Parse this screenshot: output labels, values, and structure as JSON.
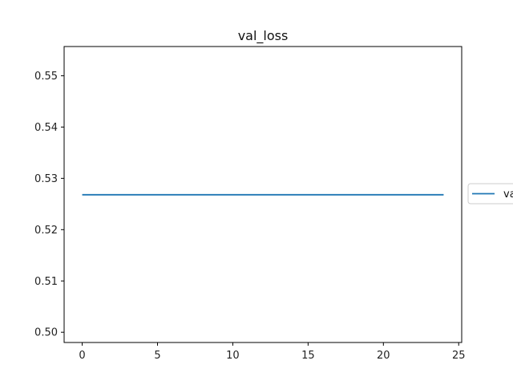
{
  "chart_data": {
    "type": "line",
    "title": "val_loss",
    "xlabel": "",
    "ylabel": "",
    "xlim": [
      -1.2,
      25.2
    ],
    "ylim": [
      0.498,
      0.5557
    ],
    "xticks": [
      0,
      5,
      10,
      15,
      20,
      25
    ],
    "yticks": [
      0.5,
      0.51,
      0.52,
      0.53,
      0.54,
      0.55
    ],
    "ytick_labels": [
      "0.50",
      "0.51",
      "0.52",
      "0.53",
      "0.54",
      "0.55"
    ],
    "grid": false,
    "legend_position": "right, outside plot",
    "series": [
      {
        "name": "va",
        "color": "#1f77b4",
        "x": [
          0,
          24
        ],
        "y": [
          0.5268,
          0.5268
        ]
      }
    ]
  }
}
